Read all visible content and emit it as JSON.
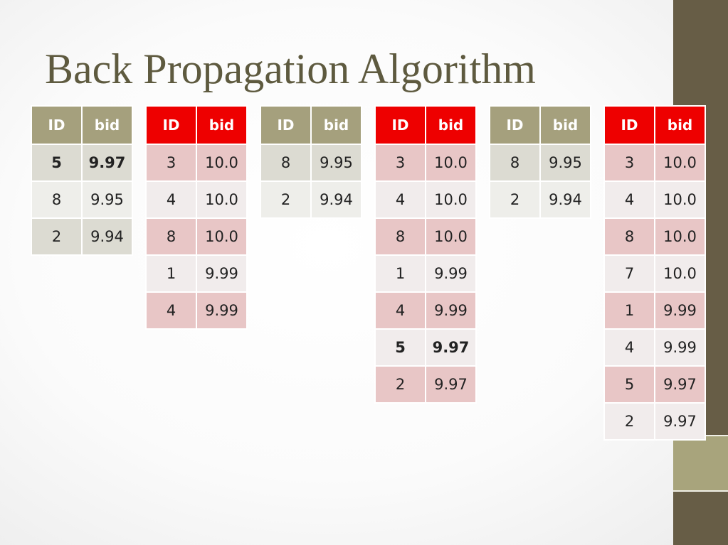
{
  "slide": {
    "title": "Back Propagation Algorithm"
  },
  "tables": [
    {
      "theme": "olive",
      "headers": [
        "ID",
        "bid"
      ],
      "rows": [
        {
          "id": "5",
          "bid": "9.97",
          "bold": true
        },
        {
          "id": "8",
          "bid": "9.95"
        },
        {
          "id": "2",
          "bid": "9.94"
        }
      ]
    },
    {
      "theme": "red",
      "headers": [
        "ID",
        "bid"
      ],
      "rows": [
        {
          "id": "3",
          "bid": "10.0"
        },
        {
          "id": "4",
          "bid": "10.0"
        },
        {
          "id": "8",
          "bid": "10.0"
        },
        {
          "id": "1",
          "bid": "9.99"
        },
        {
          "id": "4",
          "bid": "9.99"
        }
      ]
    },
    {
      "theme": "olive",
      "headers": [
        "ID",
        "bid"
      ],
      "rows": [
        {
          "id": "8",
          "bid": "9.95"
        },
        {
          "id": "2",
          "bid": "9.94"
        }
      ]
    },
    {
      "theme": "red",
      "headers": [
        "ID",
        "bid"
      ],
      "rows": [
        {
          "id": "3",
          "bid": "10.0"
        },
        {
          "id": "4",
          "bid": "10.0"
        },
        {
          "id": "8",
          "bid": "10.0"
        },
        {
          "id": "1",
          "bid": "9.99"
        },
        {
          "id": "4",
          "bid": "9.99"
        },
        {
          "id": "5",
          "bid": "9.97",
          "bold": true
        },
        {
          "id": "2",
          "bid": "9.97"
        }
      ]
    },
    {
      "theme": "olive",
      "headers": [
        "ID",
        "bid"
      ],
      "rows": [
        {
          "id": "8",
          "bid": "9.95"
        },
        {
          "id": "2",
          "bid": "9.94"
        }
      ]
    },
    {
      "theme": "red",
      "headers": [
        "ID",
        "bid"
      ],
      "rows": [
        {
          "id": "3",
          "bid": "10.0"
        },
        {
          "id": "4",
          "bid": "10.0"
        },
        {
          "id": "8",
          "bid": "10.0"
        },
        {
          "id": "7",
          "bid": "10.0"
        },
        {
          "id": "1",
          "bid": "9.99"
        },
        {
          "id": "4",
          "bid": "9.99"
        },
        {
          "id": "5",
          "bid": "9.97"
        },
        {
          "id": "2",
          "bid": "9.97"
        }
      ]
    }
  ],
  "colors": {
    "title": "#5e5a3f",
    "olive_header": "#a5a07d",
    "red_header": "#ee0000",
    "side_bar": "#675d46",
    "side_accent": "#a8a47c"
  }
}
